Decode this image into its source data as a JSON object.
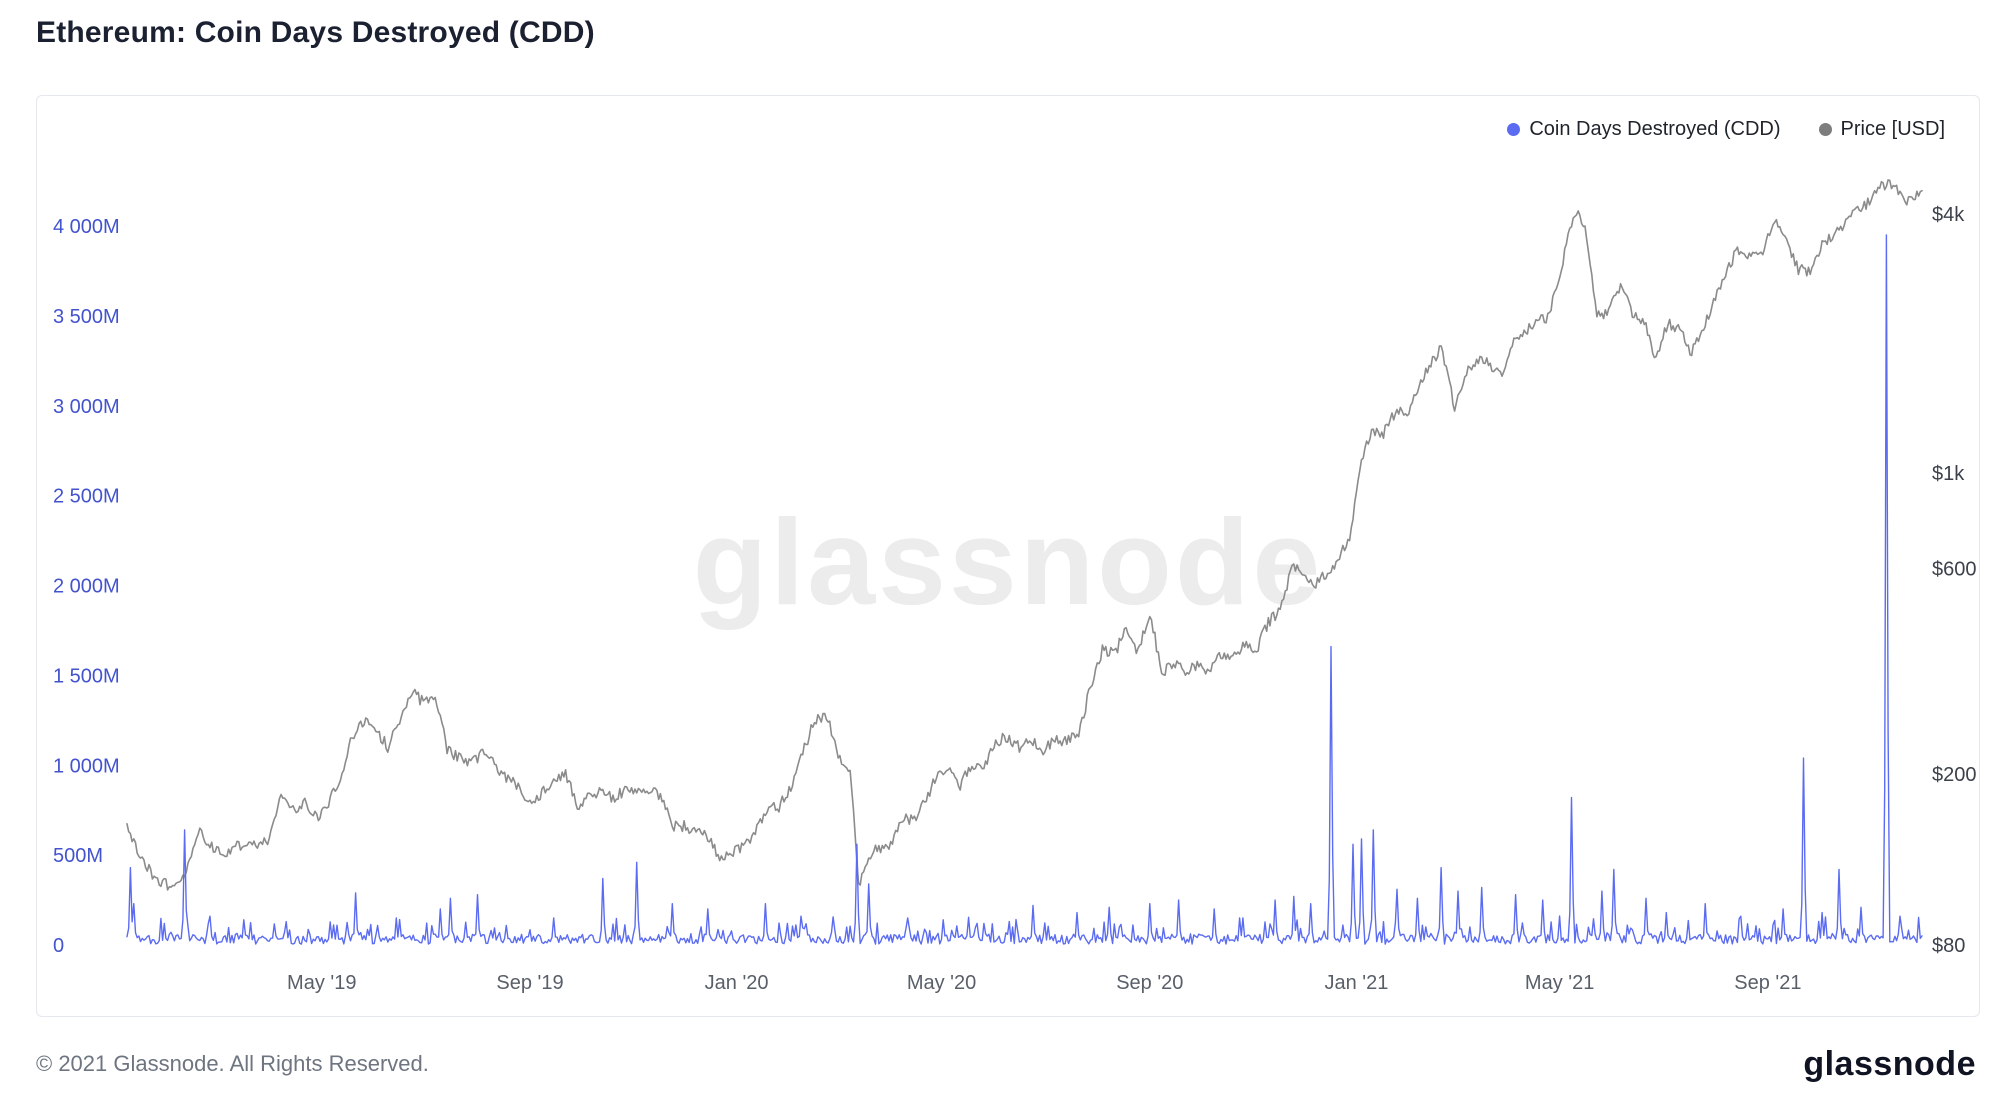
{
  "page": {
    "title": "Ethereum: Coin Days Destroyed (CDD)",
    "watermark": "glassnode",
    "footer": {
      "copyright": "© 2021 Glassnode. All Rights Reserved.",
      "logo_text": "glassnode"
    }
  },
  "legend": {
    "items": [
      {
        "id": "cdd",
        "label": "Coin Days Destroyed (CDD)",
        "color": "#5B6CF2"
      },
      {
        "id": "price",
        "label": "Price [USD]",
        "color": "#7D7D7D"
      }
    ]
  },
  "axes": {
    "left": {
      "color": "#4353CE",
      "unit": "million coin-days",
      "ticks": [
        {
          "label": "0",
          "value": 0
        },
        {
          "label": "500M",
          "value": 500
        },
        {
          "label": "1 000M",
          "value": 1000
        },
        {
          "label": "1 500M",
          "value": 1500
        },
        {
          "label": "2 000M",
          "value": 2000
        },
        {
          "label": "2 500M",
          "value": 2500
        },
        {
          "label": "3 000M",
          "value": 3000
        },
        {
          "label": "3 500M",
          "value": 3500
        },
        {
          "label": "4 000M",
          "value": 4000
        }
      ]
    },
    "right": {
      "color": "#3c414b",
      "scale": "log",
      "ticks": [
        {
          "label": "$80",
          "value": 80
        },
        {
          "label": "$200",
          "value": 200
        },
        {
          "label": "$600",
          "value": 600
        },
        {
          "label": "$1k",
          "value": 1000
        },
        {
          "label": "$4k",
          "value": 4000
        }
      ]
    },
    "x": {
      "color": "#595f69",
      "ticks": [
        {
          "label": "May '19",
          "date": "2019-05-01"
        },
        {
          "label": "Sep '19",
          "date": "2019-09-01"
        },
        {
          "label": "Jan '20",
          "date": "2020-01-01"
        },
        {
          "label": "May '20",
          "date": "2020-05-01"
        },
        {
          "label": "Sep '20",
          "date": "2020-09-01"
        },
        {
          "label": "Jan '21",
          "date": "2021-01-01"
        },
        {
          "label": "May '21",
          "date": "2021-05-01"
        },
        {
          "label": "Sep '21",
          "date": "2021-09-01"
        }
      ]
    }
  },
  "chart_data": {
    "type": "line",
    "title": "Ethereum: Coin Days Destroyed (CDD)",
    "x_start": "2019-01-06",
    "x_end": "2021-12-01",
    "noise_seed": 20211201,
    "left_axis": {
      "label": "Coin Days Destroyed (CDD)",
      "unit": "million coin-days",
      "range": [
        0,
        4400
      ],
      "scale": "linear"
    },
    "right_axis": {
      "label": "Price [USD]",
      "range": [
        75,
        5600
      ],
      "scale": "log"
    },
    "series": [
      {
        "name": "Coin Days Destroyed (CDD)",
        "axis": "left",
        "color": "#5B6CF2",
        "style": "daily spiky line hugging zero",
        "baseline_M": {
          "min": 5,
          "typical": 60,
          "max": 170
        },
        "spikes_M": [
          [
            "2019-01-08",
            430
          ],
          [
            "2019-01-10",
            230
          ],
          [
            "2019-01-28",
            120
          ],
          [
            "2019-02-09",
            640
          ],
          [
            "2019-02-24",
            160
          ],
          [
            "2019-03-16",
            140
          ],
          [
            "2019-04-10",
            130
          ],
          [
            "2019-05-10",
            110
          ],
          [
            "2019-05-21",
            290
          ],
          [
            "2019-06-14",
            150
          ],
          [
            "2019-07-10",
            200
          ],
          [
            "2019-07-16",
            260
          ],
          [
            "2019-08-01",
            280
          ],
          [
            "2019-09-15",
            150
          ],
          [
            "2019-10-14",
            370
          ],
          [
            "2019-11-03",
            460
          ],
          [
            "2019-11-24",
            230
          ],
          [
            "2019-12-15",
            200
          ],
          [
            "2020-01-18",
            230
          ],
          [
            "2020-02-08",
            160
          ],
          [
            "2020-03-12",
            560
          ],
          [
            "2020-03-19",
            340
          ],
          [
            "2020-04-11",
            150
          ],
          [
            "2020-05-02",
            140
          ],
          [
            "2020-05-26",
            120
          ],
          [
            "2020-06-24",
            220
          ],
          [
            "2020-07-20",
            180
          ],
          [
            "2020-08-08",
            210
          ],
          [
            "2020-09-01",
            230
          ],
          [
            "2020-09-18",
            250
          ],
          [
            "2020-10-09",
            200
          ],
          [
            "2020-10-26",
            150
          ],
          [
            "2020-11-14",
            250
          ],
          [
            "2020-11-25",
            270
          ],
          [
            "2020-12-05",
            230
          ],
          [
            "2020-12-17",
            1660
          ],
          [
            "2020-12-30",
            560
          ],
          [
            "2021-01-04",
            590
          ],
          [
            "2021-01-11",
            640
          ],
          [
            "2021-01-25",
            310
          ],
          [
            "2021-02-06",
            260
          ],
          [
            "2021-02-20",
            430
          ],
          [
            "2021-03-02",
            300
          ],
          [
            "2021-03-16",
            320
          ],
          [
            "2021-04-05",
            280
          ],
          [
            "2021-04-21",
            250
          ],
          [
            "2021-05-08",
            820
          ],
          [
            "2021-05-26",
            300
          ],
          [
            "2021-06-02",
            420
          ],
          [
            "2021-06-21",
            260
          ],
          [
            "2021-07-03",
            180
          ],
          [
            "2021-07-26",
            230
          ],
          [
            "2021-08-16",
            160
          ],
          [
            "2021-09-10",
            200
          ],
          [
            "2021-09-22",
            1040
          ],
          [
            "2021-10-03",
            180
          ],
          [
            "2021-10-13",
            420
          ],
          [
            "2021-10-26",
            210
          ],
          [
            "2021-11-10",
            3950
          ],
          [
            "2021-11-18",
            160
          ]
        ]
      },
      {
        "name": "Price [USD]",
        "axis": "right",
        "color": "#8b8b8b",
        "weekly_USD": [
          [
            "2019-01-06",
            152
          ],
          [
            "2019-01-13",
            128
          ],
          [
            "2019-01-20",
            118
          ],
          [
            "2019-01-27",
            112
          ],
          [
            "2019-02-03",
            107
          ],
          [
            "2019-02-10",
            120
          ],
          [
            "2019-02-17",
            147
          ],
          [
            "2019-02-24",
            137
          ],
          [
            "2019-03-03",
            131
          ],
          [
            "2019-03-10",
            134
          ],
          [
            "2019-03-17",
            139
          ],
          [
            "2019-03-24",
            135
          ],
          [
            "2019-03-31",
            142
          ],
          [
            "2019-04-07",
            176
          ],
          [
            "2019-04-14",
            166
          ],
          [
            "2019-04-21",
            171
          ],
          [
            "2019-04-28",
            158
          ],
          [
            "2019-05-05",
            172
          ],
          [
            "2019-05-12",
            196
          ],
          [
            "2019-05-19",
            245
          ],
          [
            "2019-05-26",
            266
          ],
          [
            "2019-06-02",
            252
          ],
          [
            "2019-06-09",
            231
          ],
          [
            "2019-06-16",
            268
          ],
          [
            "2019-06-23",
            311
          ],
          [
            "2019-06-30",
            293
          ],
          [
            "2019-07-07",
            306
          ],
          [
            "2019-07-14",
            226
          ],
          [
            "2019-07-21",
            218
          ],
          [
            "2019-07-28",
            211
          ],
          [
            "2019-08-04",
            222
          ],
          [
            "2019-08-11",
            211
          ],
          [
            "2019-08-18",
            195
          ],
          [
            "2019-08-25",
            187
          ],
          [
            "2019-09-01",
            172
          ],
          [
            "2019-09-08",
            181
          ],
          [
            "2019-09-15",
            189
          ],
          [
            "2019-09-22",
            201
          ],
          [
            "2019-09-29",
            169
          ],
          [
            "2019-10-06",
            176
          ],
          [
            "2019-10-13",
            184
          ],
          [
            "2019-10-20",
            175
          ],
          [
            "2019-10-27",
            183
          ],
          [
            "2019-11-03",
            181
          ],
          [
            "2019-11-10",
            185
          ],
          [
            "2019-11-17",
            178
          ],
          [
            "2019-11-24",
            152
          ],
          [
            "2019-12-01",
            151
          ],
          [
            "2019-12-08",
            148
          ],
          [
            "2019-12-15",
            142
          ],
          [
            "2019-12-22",
            128
          ],
          [
            "2019-12-29",
            132
          ],
          [
            "2020-01-05",
            136
          ],
          [
            "2020-01-12",
            145
          ],
          [
            "2020-01-19",
            166
          ],
          [
            "2020-01-26",
            168
          ],
          [
            "2020-02-02",
            184
          ],
          [
            "2020-02-09",
            223
          ],
          [
            "2020-02-16",
            265
          ],
          [
            "2020-02-23",
            274
          ],
          [
            "2020-03-01",
            218
          ],
          [
            "2020-03-08",
            199
          ],
          [
            "2020-03-13",
            110
          ],
          [
            "2020-03-17",
            121
          ],
          [
            "2020-03-24",
            136
          ],
          [
            "2020-03-31",
            133
          ],
          [
            "2020-04-07",
            158
          ],
          [
            "2020-04-14",
            156
          ],
          [
            "2020-04-21",
            171
          ],
          [
            "2020-04-28",
            196
          ],
          [
            "2020-05-05",
            206
          ],
          [
            "2020-05-12",
            188
          ],
          [
            "2020-05-19",
            211
          ],
          [
            "2020-05-26",
            203
          ],
          [
            "2020-06-02",
            238
          ],
          [
            "2020-06-09",
            244
          ],
          [
            "2020-06-16",
            231
          ],
          [
            "2020-06-23",
            242
          ],
          [
            "2020-06-30",
            226
          ],
          [
            "2020-07-07",
            239
          ],
          [
            "2020-07-14",
            240
          ],
          [
            "2020-07-21",
            245
          ],
          [
            "2020-07-28",
            317
          ],
          [
            "2020-08-04",
            389
          ],
          [
            "2020-08-11",
            379
          ],
          [
            "2020-08-18",
            431
          ],
          [
            "2020-08-25",
            385
          ],
          [
            "2020-09-01",
            475
          ],
          [
            "2020-09-08",
            337
          ],
          [
            "2020-09-15",
            365
          ],
          [
            "2020-09-22",
            344
          ],
          [
            "2020-09-29",
            360
          ],
          [
            "2020-10-06",
            341
          ],
          [
            "2020-10-13",
            379
          ],
          [
            "2020-10-20",
            369
          ],
          [
            "2020-10-27",
            403
          ],
          [
            "2020-11-03",
            387
          ],
          [
            "2020-11-10",
            450
          ],
          [
            "2020-11-17",
            478
          ],
          [
            "2020-11-24",
            602
          ],
          [
            "2020-12-01",
            587
          ],
          [
            "2020-12-08",
            555
          ],
          [
            "2020-12-15",
            589
          ],
          [
            "2020-12-22",
            637
          ],
          [
            "2020-12-29",
            730
          ],
          [
            "2021-01-05",
            1100
          ],
          [
            "2021-01-10",
            1262
          ],
          [
            "2021-01-17",
            1233
          ],
          [
            "2021-01-24",
            1392
          ],
          [
            "2021-01-31",
            1380
          ],
          [
            "2021-02-07",
            1612
          ],
          [
            "2021-02-14",
            1805
          ],
          [
            "2021-02-20",
            1940
          ],
          [
            "2021-02-28",
            1420
          ],
          [
            "2021-03-07",
            1726
          ],
          [
            "2021-03-14",
            1848
          ],
          [
            "2021-03-21",
            1790
          ],
          [
            "2021-03-28",
            1690
          ],
          [
            "2021-04-04",
            2010
          ],
          [
            "2021-04-11",
            2135
          ],
          [
            "2021-04-18",
            2240
          ],
          [
            "2021-04-25",
            2320
          ],
          [
            "2021-05-02",
            2950
          ],
          [
            "2021-05-09",
            3920
          ],
          [
            "2021-05-12",
            4170
          ],
          [
            "2021-05-16",
            3650
          ],
          [
            "2021-05-23",
            2300
          ],
          [
            "2021-05-30",
            2390
          ],
          [
            "2021-06-06",
            2710
          ],
          [
            "2021-06-13",
            2370
          ],
          [
            "2021-06-20",
            2240
          ],
          [
            "2021-06-27",
            1830
          ],
          [
            "2021-07-04",
            2230
          ],
          [
            "2021-07-11",
            2140
          ],
          [
            "2021-07-18",
            1900
          ],
          [
            "2021-07-25",
            2190
          ],
          [
            "2021-08-01",
            2560
          ],
          [
            "2021-08-08",
            3010
          ],
          [
            "2021-08-15",
            3310
          ],
          [
            "2021-08-22",
            3220
          ],
          [
            "2021-08-29",
            3230
          ],
          [
            "2021-09-05",
            3890
          ],
          [
            "2021-09-12",
            3410
          ],
          [
            "2021-09-19",
            2980
          ],
          [
            "2021-09-26",
            2930
          ],
          [
            "2021-10-03",
            3420
          ],
          [
            "2021-10-10",
            3570
          ],
          [
            "2021-10-17",
            3850
          ],
          [
            "2021-10-24",
            4080
          ],
          [
            "2021-10-31",
            4290
          ],
          [
            "2021-11-07",
            4620
          ],
          [
            "2021-11-10",
            4730
          ],
          [
            "2021-11-14",
            4650
          ],
          [
            "2021-11-21",
            4250
          ],
          [
            "2021-11-24",
            4340
          ],
          [
            "2021-11-28",
            4450
          ],
          [
            "2021-12-01",
            4560
          ]
        ]
      }
    ]
  }
}
